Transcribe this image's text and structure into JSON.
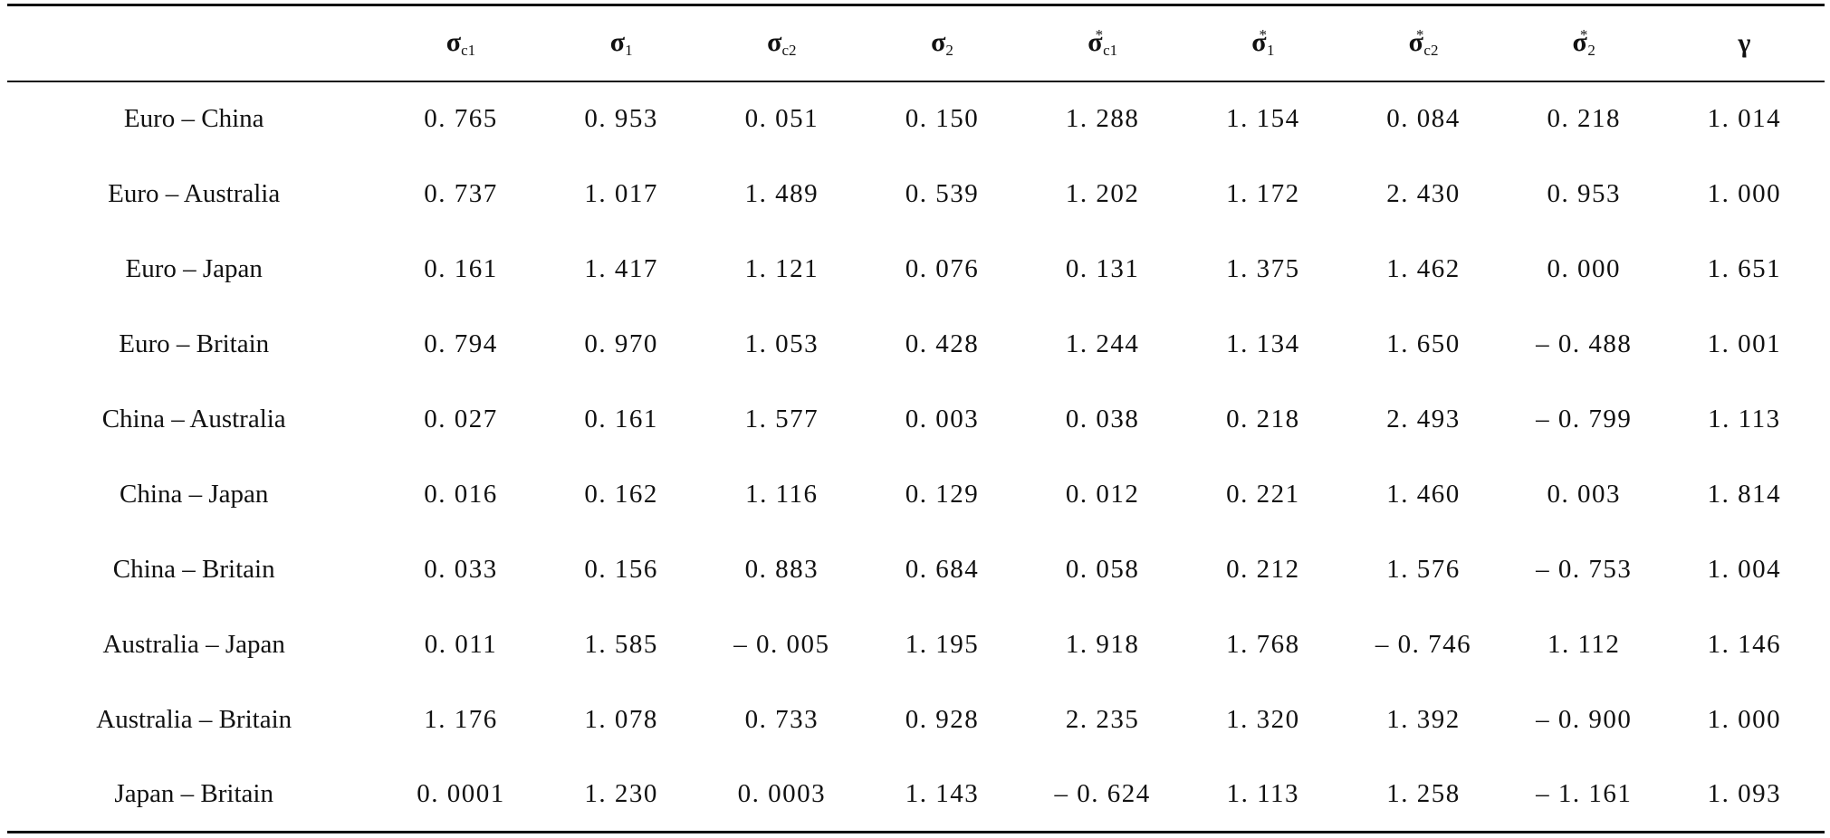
{
  "table": {
    "columns": [
      {
        "key": "label",
        "symbol": "",
        "sub": "",
        "sup": ""
      },
      {
        "key": "sigma_c1",
        "symbol": "σ",
        "sub": "c1",
        "sup": ""
      },
      {
        "key": "sigma_1",
        "symbol": "σ",
        "sub": "1",
        "sup": ""
      },
      {
        "key": "sigma_c2",
        "symbol": "σ",
        "sub": "c2",
        "sup": ""
      },
      {
        "key": "sigma_2",
        "symbol": "σ",
        "sub": "2",
        "sup": ""
      },
      {
        "key": "sigma_c1_star",
        "symbol": "σ",
        "sub": "c1",
        "sup": "*"
      },
      {
        "key": "sigma_1_star",
        "symbol": "σ",
        "sub": "1",
        "sup": "*"
      },
      {
        "key": "sigma_c2_star",
        "symbol": "σ",
        "sub": "c2",
        "sup": "*"
      },
      {
        "key": "sigma_2_star",
        "symbol": "σ",
        "sub": "2",
        "sup": "*"
      },
      {
        "key": "gamma",
        "symbol": "γ",
        "sub": "",
        "sup": ""
      }
    ],
    "rows": [
      {
        "label": "Euro – China",
        "values": [
          "0. 765",
          "0. 953",
          "0. 051",
          "0. 150",
          "1. 288",
          "1. 154",
          "0. 084",
          "0. 218",
          "1. 014"
        ]
      },
      {
        "label": "Euro – Australia",
        "values": [
          "0. 737",
          "1. 017",
          "1. 489",
          "0. 539",
          "1. 202",
          "1. 172",
          "2. 430",
          "0. 953",
          "1. 000"
        ]
      },
      {
        "label": "Euro – Japan",
        "values": [
          "0. 161",
          "1. 417",
          "1. 121",
          "0. 076",
          "0. 131",
          "1. 375",
          "1. 462",
          "0. 000",
          "1. 651"
        ]
      },
      {
        "label": "Euro – Britain",
        "values": [
          "0. 794",
          "0. 970",
          "1. 053",
          "0. 428",
          "1. 244",
          "1. 134",
          "1. 650",
          "– 0. 488",
          "1. 001"
        ]
      },
      {
        "label": "China – Australia",
        "values": [
          "0. 027",
          "0. 161",
          "1. 577",
          "0. 003",
          "0. 038",
          "0. 218",
          "2. 493",
          "– 0. 799",
          "1. 113"
        ]
      },
      {
        "label": "China – Japan",
        "values": [
          "0. 016",
          "0. 162",
          "1. 116",
          "0. 129",
          "0. 012",
          "0. 221",
          "1. 460",
          "0. 003",
          "1. 814"
        ]
      },
      {
        "label": "China – Britain",
        "values": [
          "0. 033",
          "0. 156",
          "0. 883",
          "0. 684",
          "0. 058",
          "0. 212",
          "1. 576",
          "– 0. 753",
          "1. 004"
        ]
      },
      {
        "label": "Australia – Japan",
        "values": [
          "0. 011",
          "1. 585",
          "– 0. 005",
          "1. 195",
          "1. 918",
          "1. 768",
          "– 0. 746",
          "1. 112",
          "1. 146"
        ]
      },
      {
        "label": "Australia – Britain",
        "values": [
          "1. 176",
          "1. 078",
          "0. 733",
          "0. 928",
          "2. 235",
          "1. 320",
          "1. 392",
          "– 0. 900",
          "1. 000"
        ]
      },
      {
        "label": "Japan – Britain",
        "values": [
          "0. 0001",
          "1. 230",
          "0. 0003",
          "1. 143",
          "– 0. 624",
          "1. 113",
          "1. 258",
          "– 1. 161",
          "1. 093"
        ]
      }
    ]
  }
}
